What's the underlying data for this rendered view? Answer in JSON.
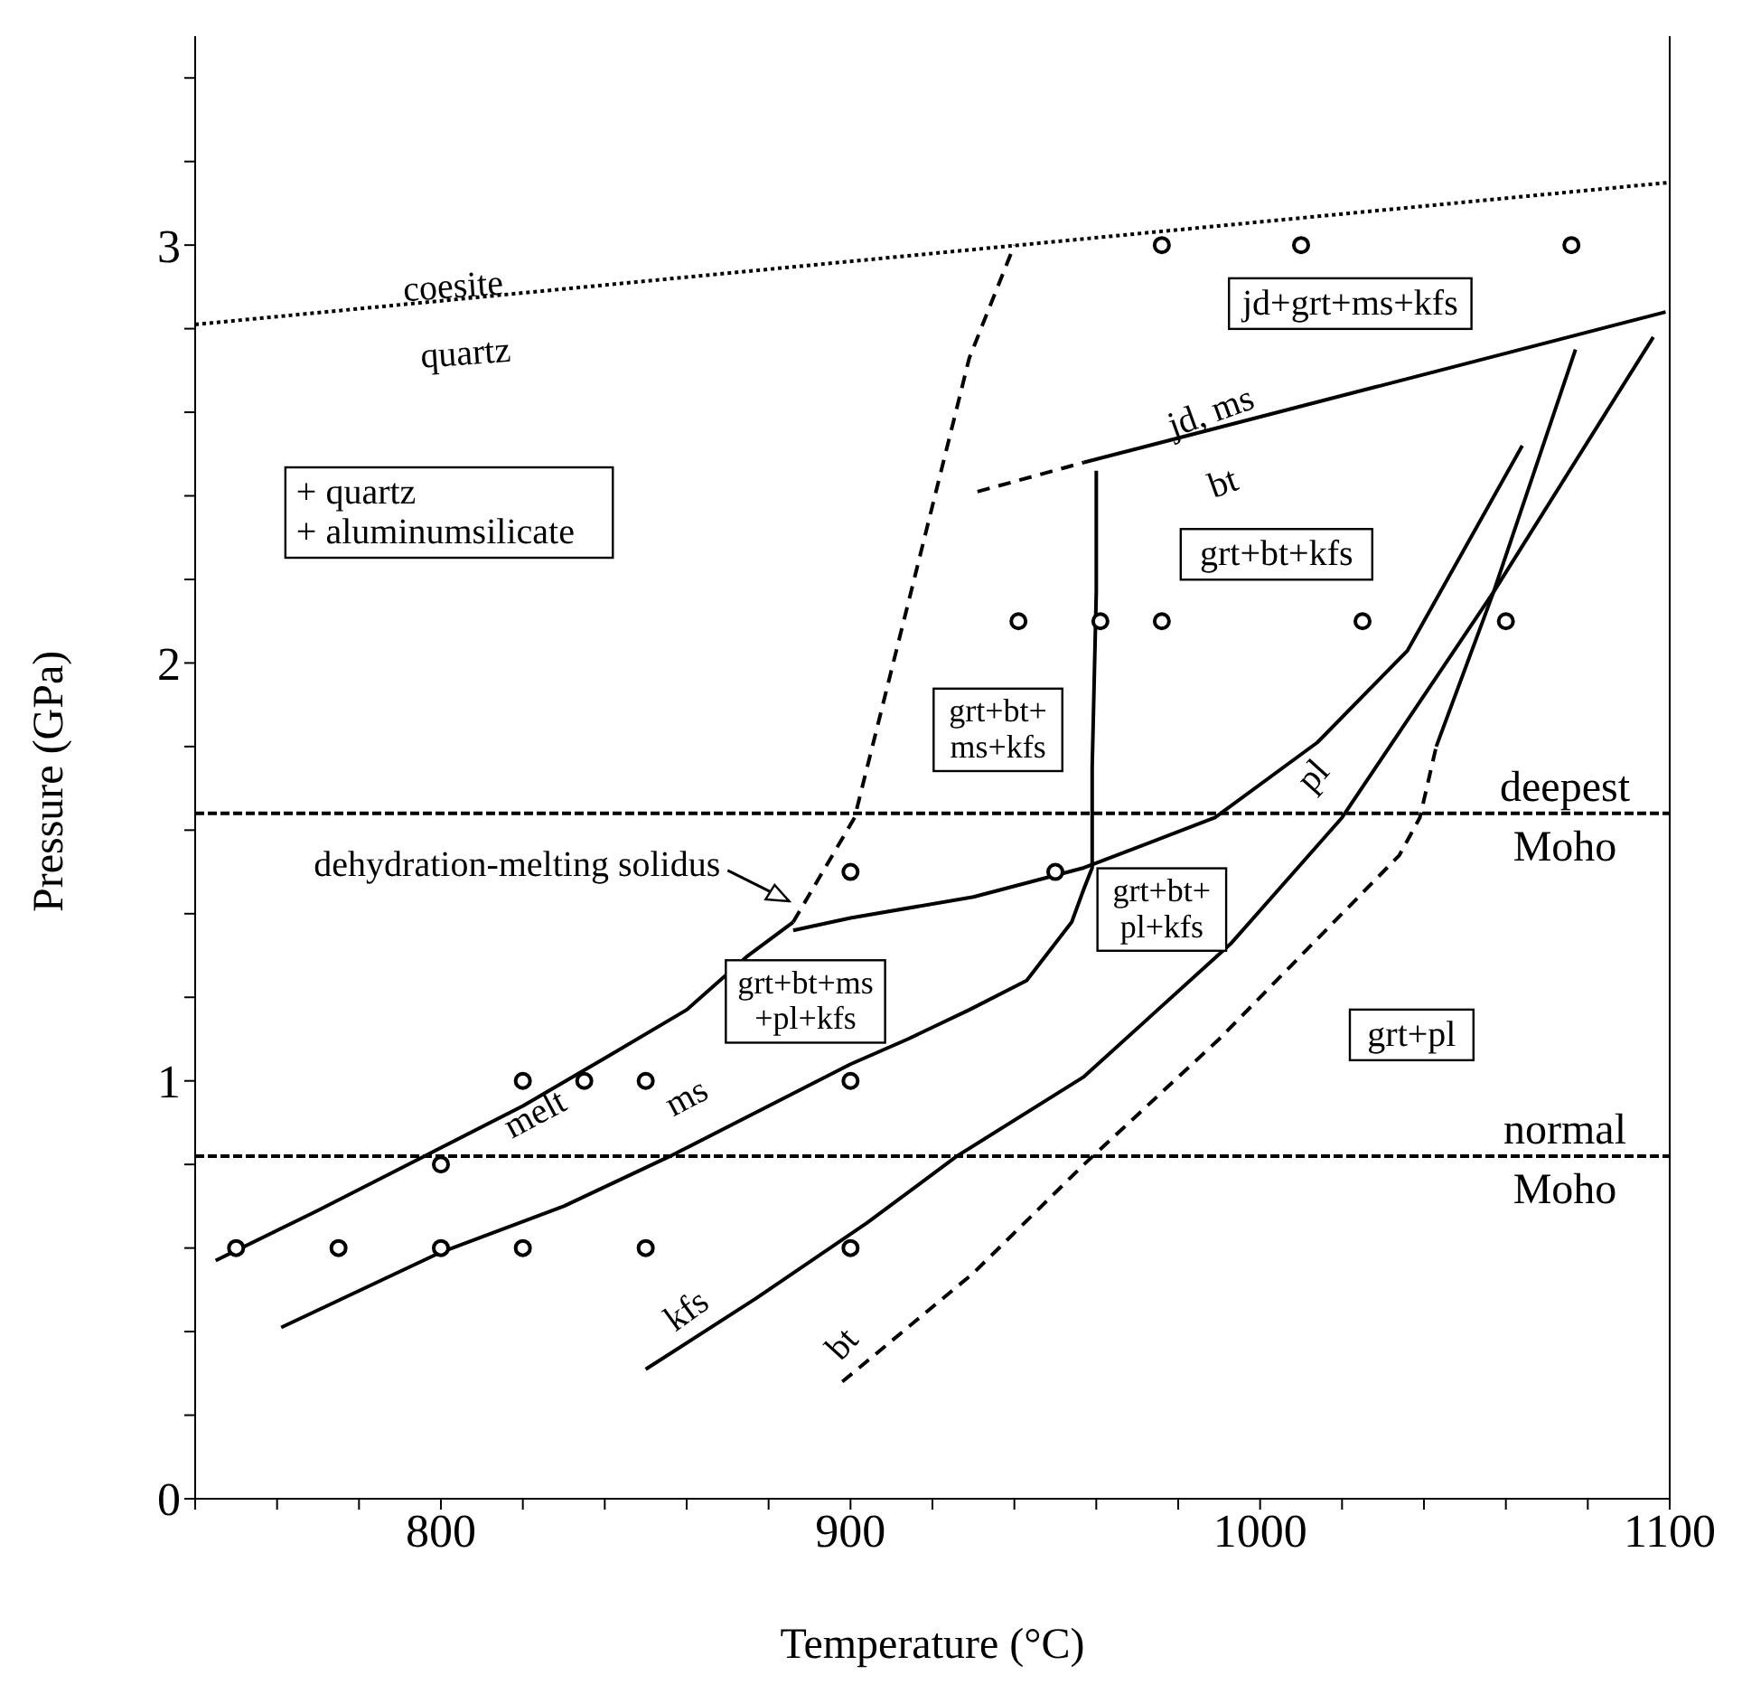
{
  "chart_data": {
    "type": "line",
    "xlabel": "Temperature (°C)",
    "ylabel": "Pressure (GPa)",
    "xlim": [
      740,
      1100
    ],
    "ylim": [
      0,
      3.5
    ],
    "xticks": [
      {
        "value": 740,
        "label": null
      },
      {
        "value": 760,
        "label": null
      },
      {
        "value": 780,
        "label": null
      },
      800,
      {
        "value": 820,
        "label": null
      },
      {
        "value": 840,
        "label": null
      },
      {
        "value": 860,
        "label": null
      },
      {
        "value": 880,
        "label": null
      },
      900,
      {
        "value": 920,
        "label": null
      },
      {
        "value": 940,
        "label": null
      },
      {
        "value": 960,
        "label": null
      },
      {
        "value": 980,
        "label": null
      },
      1000,
      {
        "value": 1020,
        "label": null
      },
      {
        "value": 1040,
        "label": null
      },
      {
        "value": 1060,
        "label": null
      },
      {
        "value": 1080,
        "label": null
      },
      1100
    ],
    "yticks": [
      0,
      {
        "value": 0.2,
        "label": null
      },
      {
        "value": 0.4,
        "label": null
      },
      {
        "value": 0.6,
        "label": null
      },
      {
        "value": 0.8,
        "label": null
      },
      1,
      {
        "value": 1.2,
        "label": null
      },
      {
        "value": 1.4,
        "label": null
      },
      {
        "value": 1.6,
        "label": null
      },
      {
        "value": 1.8,
        "label": null
      },
      2,
      {
        "value": 2.2,
        "label": null
      },
      {
        "value": 2.4,
        "label": null
      },
      {
        "value": 2.6,
        "label": null
      },
      {
        "value": 2.8,
        "label": null
      },
      3,
      {
        "value": 3.2,
        "label": null
      },
      {
        "value": 3.4,
        "label": null
      }
    ],
    "series": [
      {
        "line_style": "dotted",
        "color": "#000000",
        "x": [
          740,
          1100
        ],
        "values": [
          2.81,
          3.15
        ]
      },
      {
        "line_style": "solid",
        "color": "#000000",
        "x": [
          745,
          770,
          796,
          820,
          841,
          860,
          875,
          886
        ],
        "values": [
          0.57,
          0.69,
          0.82,
          0.94,
          1.06,
          1.17,
          1.3,
          1.38
        ]
      },
      {
        "line_style": "dashed",
        "color": "#000000",
        "x": [
          886,
          901,
          914,
          929,
          940
        ],
        "values": [
          1.38,
          1.63,
          2.14,
          2.73,
          3.0
        ]
      },
      {
        "line_style": "solid",
        "color": "#000000",
        "x": [
          761,
          800,
          830,
          856,
          880,
          900,
          914,
          929,
          943,
          954,
          957,
          959,
          959,
          960,
          960
        ],
        "values": [
          0.41,
          0.59,
          0.7,
          0.82,
          0.94,
          1.04,
          1.1,
          1.17,
          1.24,
          1.38,
          1.46,
          1.51,
          1.75,
          2.17,
          2.46
        ]
      },
      {
        "line_style": "solid",
        "color": "#000000",
        "x": [
          886,
          900,
          930,
          957,
          989,
          1014,
          1036,
          1064
        ],
        "values": [
          1.36,
          1.39,
          1.44,
          1.51,
          1.63,
          1.81,
          2.03,
          2.52
        ]
      },
      {
        "line_style": "solid",
        "color": "#000000",
        "x": [
          850,
          877,
          904,
          926,
          957,
          993,
          1020,
          1057,
          1096
        ],
        "values": [
          0.31,
          0.48,
          0.66,
          0.82,
          1.01,
          1.33,
          1.63,
          2.17,
          2.78
        ]
      },
      {
        "line_style": "dashed",
        "color": "#000000",
        "x": [
          898,
          930,
          957,
          990,
          1019,
          1034,
          1039,
          1043
        ],
        "values": [
          0.28,
          0.54,
          0.8,
          1.1,
          1.39,
          1.54,
          1.63,
          1.8
        ]
      },
      {
        "line_style": "solid",
        "color": "#000000",
        "x": [
          1043,
          1057,
          1077
        ],
        "values": [
          1.8,
          2.17,
          2.75
        ]
      },
      {
        "line_style": "dashed",
        "color": "#000000",
        "x": [
          931,
          957
        ],
        "values": [
          2.41,
          2.48
        ]
      },
      {
        "line_style": "solid",
        "color": "#000000",
        "x": [
          957,
          1099
        ],
        "values": [
          2.48,
          2.84
        ]
      },
      {
        "type": "scatter",
        "marker": "circle",
        "color": "#000000",
        "x": [
          750,
          775,
          800,
          820,
          850,
          900,
          800,
          820,
          835,
          850,
          900,
          900,
          950,
          941,
          961,
          976,
          1025,
          1060,
          976,
          1010,
          1076
        ],
        "values": [
          0.6,
          0.6,
          0.6,
          0.6,
          0.6,
          0.6,
          0.8,
          1,
          1,
          1,
          1,
          1.5,
          1.5,
          2.1,
          2.1,
          2.1,
          2.1,
          2.1,
          3,
          3,
          3
        ]
      }
    ],
    "ref_lines": [
      {
        "axis": "y",
        "value": 1.64,
        "label": "deepest Moho",
        "line_style": "dashed",
        "color": "#000000"
      },
      {
        "axis": "y",
        "value": 0.82,
        "label": "normal Moho",
        "line_style": "dashed",
        "color": "#000000"
      }
    ],
    "annotations": [
      "coesite",
      "quartz",
      "+ quartz\n+ aluminumsilicate",
      "jd+grt+ms+kfs",
      "jd, ms",
      "bt",
      "grt+bt+kfs",
      "grt+bt+\nms+kfs",
      "dehydration-melting solidus",
      "grt+bt+\npl+kfs",
      "grt+bt+ms\n+pl+kfs",
      "melt",
      "ms",
      "kfs",
      "bt",
      "pl",
      "grt+pl"
    ]
  }
}
